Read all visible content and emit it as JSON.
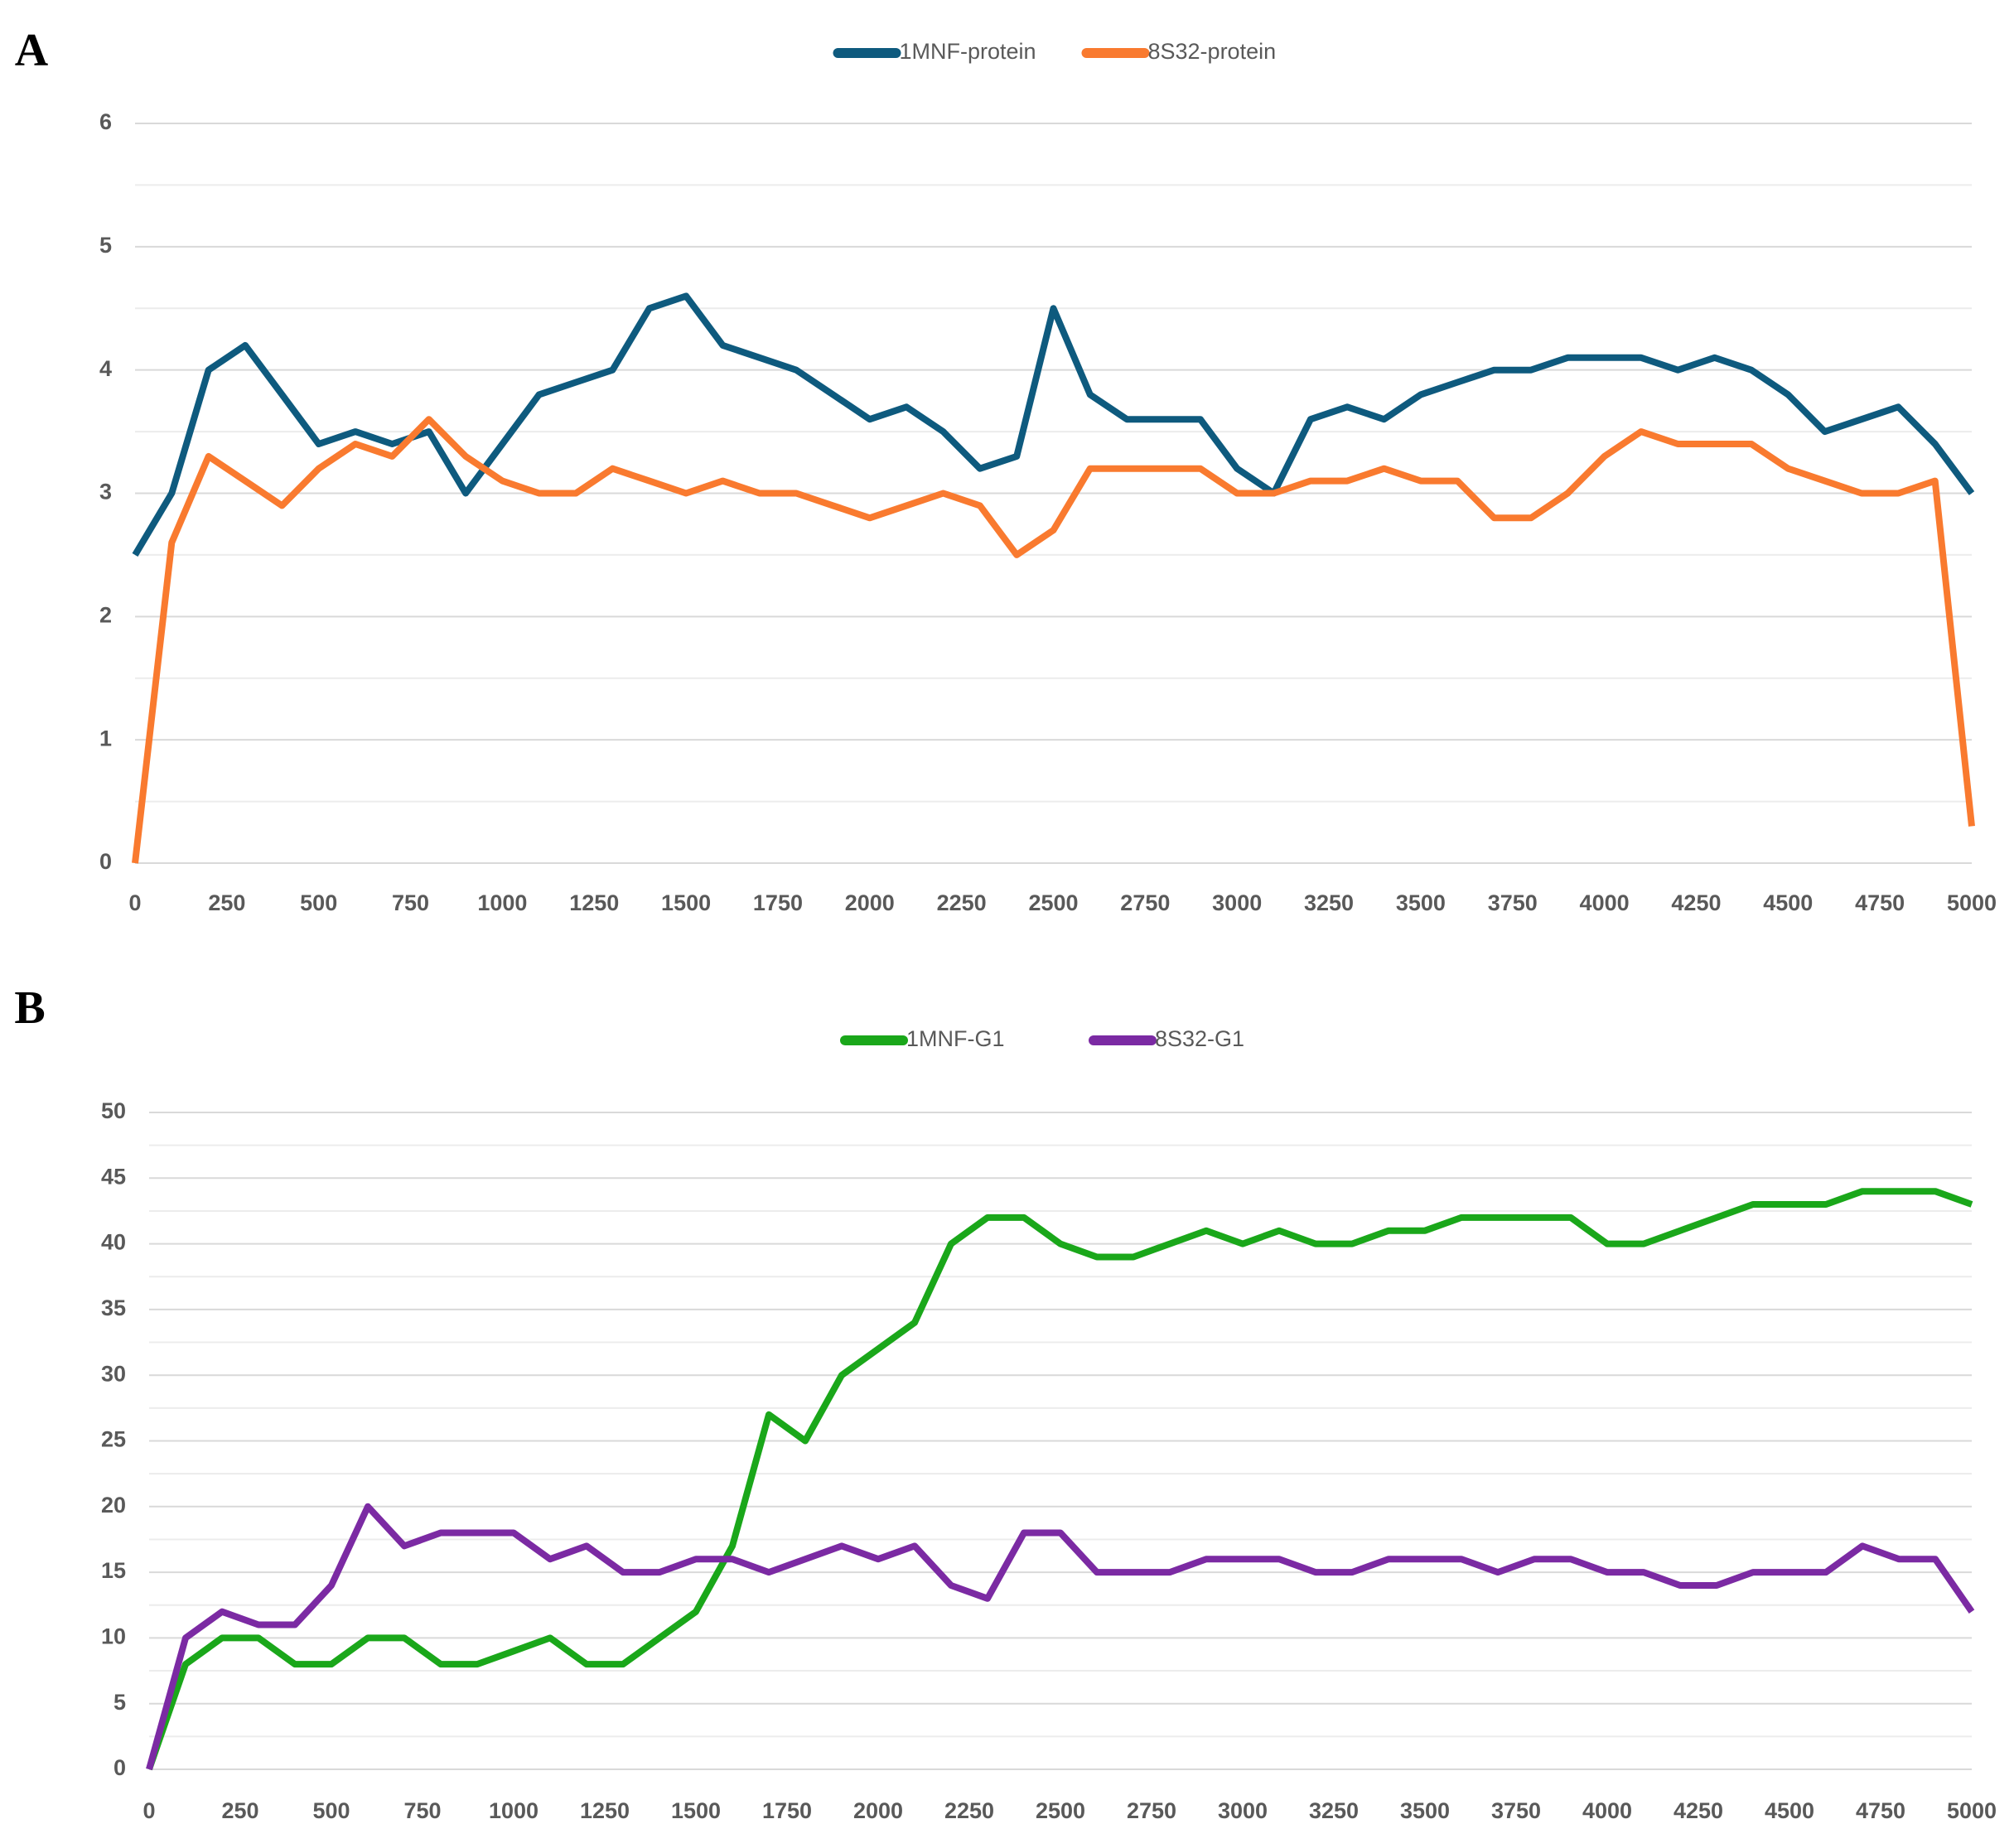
{
  "chart_data": [
    {
      "type": "line",
      "panel": "A",
      "x": [
        0,
        100,
        200,
        300,
        400,
        500,
        600,
        700,
        800,
        900,
        1000,
        1100,
        1200,
        1300,
        1400,
        1500,
        1600,
        1700,
        1800,
        1900,
        2000,
        2100,
        2200,
        2300,
        2400,
        2500,
        2600,
        2700,
        2800,
        2900,
        3000,
        3100,
        3200,
        3300,
        3400,
        3500,
        3600,
        3700,
        3800,
        3900,
        4000,
        4100,
        4200,
        4300,
        4400,
        4500,
        4600,
        4700,
        4800,
        4900,
        5000
      ],
      "series": [
        {
          "name": "1MNF-protein",
          "color": "#0e5a7e",
          "values": [
            2.5,
            3.0,
            4.0,
            4.2,
            3.8,
            3.4,
            3.5,
            3.4,
            3.5,
            3.0,
            3.4,
            3.8,
            3.9,
            4.0,
            4.5,
            4.6,
            4.2,
            4.1,
            4.0,
            3.8,
            3.6,
            3.7,
            3.5,
            3.2,
            3.3,
            4.5,
            3.8,
            3.6,
            3.6,
            3.6,
            3.2,
            3.0,
            3.6,
            3.7,
            3.6,
            3.8,
            3.9,
            4.0,
            4.0,
            4.1,
            4.1,
            4.1,
            4.0,
            4.1,
            4.0,
            3.8,
            3.5,
            3.6,
            3.7,
            3.4,
            3.0
          ]
        },
        {
          "name": "8S32-protein",
          "color": "#f97a2f",
          "values": [
            0,
            2.6,
            3.3,
            3.1,
            2.9,
            3.2,
            3.4,
            3.3,
            3.6,
            3.3,
            3.1,
            3.0,
            3.0,
            3.2,
            3.1,
            3.0,
            3.1,
            3.0,
            3.0,
            2.9,
            2.8,
            2.9,
            3.0,
            2.9,
            2.5,
            2.7,
            3.2,
            3.2,
            3.2,
            3.2,
            3.0,
            3.0,
            3.1,
            3.1,
            3.2,
            3.1,
            3.1,
            2.8,
            2.8,
            3.0,
            3.3,
            3.5,
            3.4,
            3.4,
            3.4,
            3.2,
            3.1,
            3.0,
            3.0,
            3.1,
            0.3
          ]
        }
      ],
      "xlim": [
        0,
        5000
      ],
      "xticks": [
        0,
        250,
        500,
        750,
        1000,
        1250,
        1500,
        1750,
        2000,
        2250,
        2500,
        2750,
        3000,
        3250,
        3500,
        3750,
        4000,
        4250,
        4500,
        4750,
        5000
      ],
      "ylim": [
        0,
        6
      ],
      "yticks": [
        0,
        1,
        2,
        3,
        4,
        5,
        6
      ],
      "grid": true,
      "minor_grid": true,
      "legend": "top"
    },
    {
      "type": "line",
      "panel": "B",
      "x": [
        0,
        100,
        200,
        300,
        400,
        500,
        600,
        700,
        800,
        900,
        1000,
        1100,
        1200,
        1300,
        1400,
        1500,
        1600,
        1700,
        1800,
        1900,
        2000,
        2100,
        2200,
        2300,
        2400,
        2500,
        2600,
        2700,
        2800,
        2900,
        3000,
        3100,
        3200,
        3300,
        3400,
        3500,
        3600,
        3700,
        3800,
        3900,
        4000,
        4100,
        4200,
        4300,
        4400,
        4500,
        4600,
        4700,
        4800,
        4900,
        5000
      ],
      "series": [
        {
          "name": "1MNF-G1",
          "color": "#1aa71a",
          "values": [
            0,
            8,
            10,
            10,
            8,
            8,
            10,
            10,
            8,
            8,
            9,
            10,
            8,
            8,
            10,
            12,
            17,
            27,
            25,
            30,
            32,
            34,
            40,
            42,
            42,
            40,
            39,
            39,
            40,
            41,
            40,
            41,
            40,
            40,
            41,
            41,
            42,
            42,
            42,
            42,
            40,
            40,
            41,
            42,
            43,
            43,
            43,
            44,
            44,
            44,
            43
          ]
        },
        {
          "name": "8S32-G1",
          "color": "#7b2aa3",
          "values": [
            0,
            10,
            12,
            11,
            11,
            14,
            20,
            17,
            18,
            18,
            18,
            16,
            17,
            15,
            15,
            16,
            16,
            15,
            16,
            17,
            16,
            17,
            14,
            13,
            18,
            18,
            15,
            15,
            15,
            16,
            16,
            16,
            15,
            15,
            16,
            16,
            16,
            15,
            16,
            16,
            15,
            15,
            14,
            14,
            15,
            15,
            15,
            17,
            16,
            16,
            12
          ]
        }
      ],
      "xlim": [
        0,
        5000
      ],
      "xticks": [
        0,
        250,
        500,
        750,
        1000,
        1250,
        1500,
        1750,
        2000,
        2250,
        2500,
        2750,
        3000,
        3250,
        3500,
        3750,
        4000,
        4250,
        4500,
        4750,
        5000
      ],
      "ylim": [
        0,
        50
      ],
      "yticks": [
        0,
        5,
        10,
        15,
        20,
        25,
        30,
        35,
        40,
        45,
        50
      ],
      "grid": true,
      "minor_grid": true,
      "legend": "top"
    }
  ]
}
